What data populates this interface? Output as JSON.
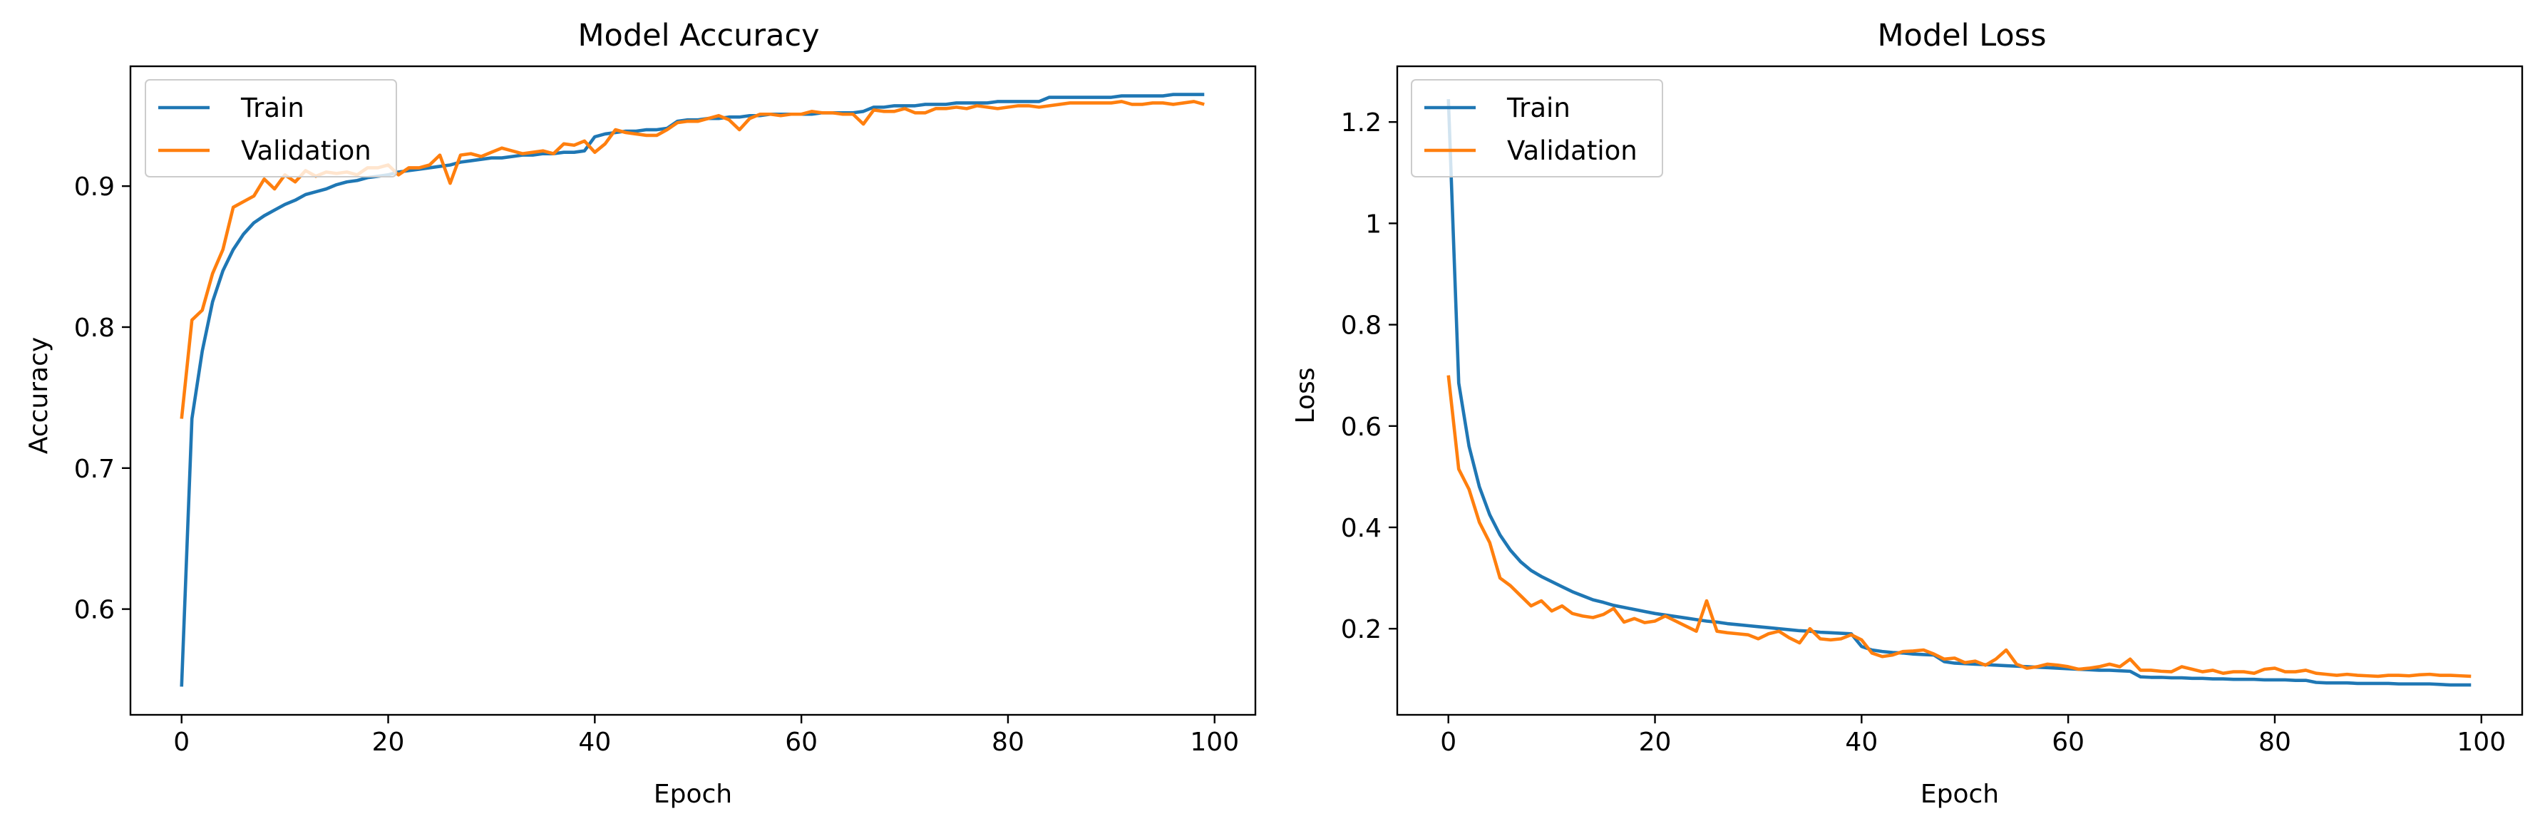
{
  "chart_data": [
    {
      "type": "line",
      "title": "Model Accuracy",
      "xlabel": "Epoch",
      "ylabel": "Accuracy",
      "xlim": [
        -4.95,
        103.95
      ],
      "ylim": [
        0.525,
        0.985
      ],
      "xticks": [
        0,
        20,
        40,
        60,
        80,
        100
      ],
      "yticks": [
        0.6,
        0.7,
        0.8,
        0.9
      ],
      "legend": "upper left",
      "grid": false,
      "x_start": 0,
      "series": [
        {
          "name": "Train",
          "color": "#1f77b4",
          "values": [
            0.545,
            0.735,
            0.783,
            0.818,
            0.84,
            0.855,
            0.866,
            0.874,
            0.879,
            0.883,
            0.887,
            0.89,
            0.894,
            0.896,
            0.898,
            0.901,
            0.903,
            0.904,
            0.906,
            0.907,
            0.908,
            0.91,
            0.911,
            0.912,
            0.913,
            0.914,
            0.915,
            0.917,
            0.918,
            0.919,
            0.92,
            0.92,
            0.921,
            0.922,
            0.922,
            0.923,
            0.923,
            0.924,
            0.924,
            0.925,
            0.935,
            0.937,
            0.938,
            0.939,
            0.939,
            0.94,
            0.94,
            0.941,
            0.946,
            0.947,
            0.947,
            0.948,
            0.948,
            0.949,
            0.949,
            0.95,
            0.95,
            0.951,
            0.951,
            0.951,
            0.951,
            0.951,
            0.952,
            0.952,
            0.952,
            0.952,
            0.953,
            0.956,
            0.956,
            0.957,
            0.957,
            0.957,
            0.958,
            0.958,
            0.958,
            0.959,
            0.959,
            0.959,
            0.959,
            0.96,
            0.96,
            0.96,
            0.96,
            0.96,
            0.963,
            0.963,
            0.963,
            0.963,
            0.963,
            0.963,
            0.963,
            0.964,
            0.964,
            0.964,
            0.964,
            0.964,
            0.965,
            0.965,
            0.965,
            0.965
          ]
        },
        {
          "name": "Validation",
          "color": "#ff7f0e",
          "values": [
            0.735,
            0.805,
            0.812,
            0.838,
            0.855,
            0.885,
            0.889,
            0.893,
            0.905,
            0.898,
            0.908,
            0.903,
            0.911,
            0.907,
            0.91,
            0.909,
            0.91,
            0.908,
            0.913,
            0.913,
            0.915,
            0.908,
            0.913,
            0.913,
            0.915,
            0.922,
            0.902,
            0.922,
            0.923,
            0.921,
            0.924,
            0.927,
            0.925,
            0.923,
            0.924,
            0.925,
            0.923,
            0.93,
            0.929,
            0.932,
            0.924,
            0.93,
            0.94,
            0.938,
            0.937,
            0.936,
            0.936,
            0.94,
            0.945,
            0.946,
            0.946,
            0.948,
            0.95,
            0.947,
            0.94,
            0.948,
            0.951,
            0.951,
            0.95,
            0.951,
            0.951,
            0.953,
            0.952,
            0.952,
            0.951,
            0.951,
            0.944,
            0.954,
            0.953,
            0.953,
            0.955,
            0.952,
            0.952,
            0.955,
            0.955,
            0.956,
            0.955,
            0.957,
            0.956,
            0.955,
            0.956,
            0.957,
            0.957,
            0.956,
            0.957,
            0.958,
            0.959,
            0.959,
            0.959,
            0.959,
            0.959,
            0.96,
            0.958,
            0.958,
            0.959,
            0.959,
            0.958,
            0.959,
            0.96,
            0.958
          ]
        }
      ]
    },
    {
      "type": "line",
      "title": "Model Loss",
      "xlabel": "Epoch",
      "ylabel": "Loss",
      "xlim": [
        -4.95,
        103.95
      ],
      "ylim": [
        0.03,
        1.31
      ],
      "xticks": [
        0,
        20,
        40,
        60,
        80,
        100
      ],
      "yticks": [
        0.2,
        0.4,
        0.6,
        0.8,
        1.0,
        1.2
      ],
      "legend": "upper left",
      "grid": false,
      "x_start": 0,
      "series": [
        {
          "name": "Train",
          "color": "#1f77b4",
          "values": [
            1.245,
            0.685,
            0.56,
            0.48,
            0.425,
            0.385,
            0.355,
            0.332,
            0.315,
            0.303,
            0.293,
            0.283,
            0.273,
            0.265,
            0.257,
            0.252,
            0.246,
            0.242,
            0.238,
            0.234,
            0.23,
            0.227,
            0.224,
            0.221,
            0.218,
            0.215,
            0.213,
            0.21,
            0.208,
            0.206,
            0.204,
            0.202,
            0.2,
            0.198,
            0.196,
            0.195,
            0.193,
            0.192,
            0.191,
            0.19,
            0.165,
            0.158,
            0.155,
            0.153,
            0.152,
            0.15,
            0.149,
            0.148,
            0.135,
            0.132,
            0.131,
            0.13,
            0.129,
            0.128,
            0.127,
            0.126,
            0.125,
            0.124,
            0.123,
            0.122,
            0.121,
            0.12,
            0.119,
            0.118,
            0.118,
            0.117,
            0.116,
            0.105,
            0.104,
            0.104,
            0.103,
            0.103,
            0.102,
            0.102,
            0.101,
            0.101,
            0.1,
            0.1,
            0.1,
            0.099,
            0.099,
            0.099,
            0.098,
            0.098,
            0.094,
            0.093,
            0.093,
            0.093,
            0.092,
            0.092,
            0.092,
            0.092,
            0.091,
            0.091,
            0.091,
            0.091,
            0.09,
            0.089,
            0.089,
            0.089
          ]
        },
        {
          "name": "Validation",
          "color": "#ff7f0e",
          "values": [
            0.7,
            0.515,
            0.475,
            0.41,
            0.37,
            0.3,
            0.285,
            0.265,
            0.245,
            0.255,
            0.235,
            0.245,
            0.23,
            0.225,
            0.222,
            0.228,
            0.24,
            0.213,
            0.22,
            0.212,
            0.215,
            0.225,
            0.215,
            0.205,
            0.195,
            0.255,
            0.195,
            0.192,
            0.19,
            0.188,
            0.18,
            0.19,
            0.195,
            0.182,
            0.172,
            0.2,
            0.18,
            0.178,
            0.18,
            0.188,
            0.178,
            0.152,
            0.145,
            0.148,
            0.155,
            0.156,
            0.158,
            0.15,
            0.14,
            0.142,
            0.133,
            0.136,
            0.128,
            0.14,
            0.158,
            0.13,
            0.122,
            0.125,
            0.13,
            0.128,
            0.125,
            0.12,
            0.122,
            0.125,
            0.13,
            0.125,
            0.14,
            0.118,
            0.118,
            0.116,
            0.115,
            0.125,
            0.12,
            0.115,
            0.118,
            0.112,
            0.115,
            0.115,
            0.112,
            0.12,
            0.122,
            0.115,
            0.115,
            0.118,
            0.112,
            0.11,
            0.108,
            0.11,
            0.108,
            0.107,
            0.106,
            0.108,
            0.108,
            0.107,
            0.109,
            0.11,
            0.108,
            0.108,
            0.107,
            0.106
          ]
        }
      ]
    }
  ]
}
